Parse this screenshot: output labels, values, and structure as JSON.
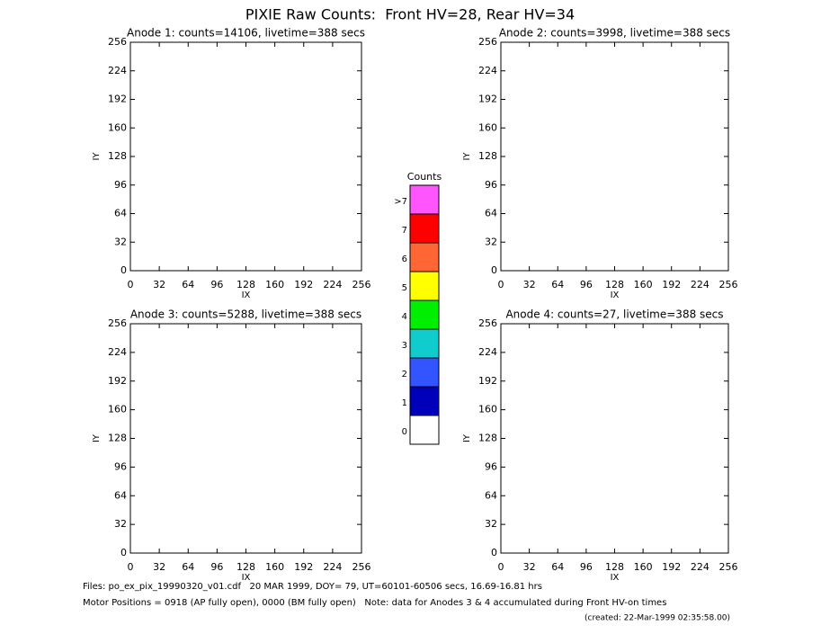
{
  "title": "PIXIE Raw Counts:  Front HV=28, Rear HV=34",
  "chart_data": [
    {
      "type": "scatter",
      "title": "Anode 1: counts=14106, livetime=388 secs",
      "x_label": "IX",
      "y_label": "IY",
      "xlim": [
        0,
        256
      ],
      "ylim": [
        0,
        256
      ],
      "xticks": [
        0,
        32,
        64,
        96,
        128,
        160,
        192,
        224,
        256
      ],
      "yticks": [
        0,
        32,
        64,
        96,
        128,
        160,
        192,
        224,
        256
      ]
    },
    {
      "type": "scatter",
      "title": "Anode 2: counts=3998, livetime=388 secs",
      "x_label": "IX",
      "y_label": "IY",
      "xlim": [
        0,
        256
      ],
      "ylim": [
        0,
        256
      ],
      "xticks": [
        0,
        32,
        64,
        96,
        128,
        160,
        192,
        224,
        256
      ],
      "yticks": [
        0,
        32,
        64,
        96,
        128,
        160,
        192,
        224,
        256
      ]
    },
    {
      "type": "scatter",
      "title": "Anode 3: counts=5288, livetime=388 secs",
      "x_label": "IX",
      "y_label": "IY",
      "xlim": [
        0,
        256
      ],
      "ylim": [
        0,
        256
      ],
      "xticks": [
        0,
        32,
        64,
        96,
        128,
        160,
        192,
        224,
        256
      ],
      "yticks": [
        0,
        32,
        64,
        96,
        128,
        160,
        192,
        224,
        256
      ]
    },
    {
      "type": "scatter",
      "title": "Anode 4: counts=27, livetime=388 secs",
      "x_label": "IX",
      "y_label": "IY",
      "xlim": [
        0,
        256
      ],
      "ylim": [
        0,
        256
      ],
      "xticks": [
        0,
        32,
        64,
        96,
        128,
        160,
        192,
        224,
        256
      ],
      "yticks": [
        0,
        32,
        64,
        96,
        128,
        160,
        192,
        224,
        256
      ]
    }
  ],
  "colorbar": {
    "title": "Counts",
    "labels": [
      ">7",
      "7",
      "6",
      "5",
      "4",
      "3",
      "2",
      "1",
      "0"
    ],
    "colors": [
      "#ff55ff",
      "#ff0000",
      "#ff6633",
      "#ffff00",
      "#00ee00",
      "#11cccc",
      "#3355ff",
      "#0000bb",
      "#ffffff"
    ]
  },
  "footer": {
    "files": "Files: po_ex_pix_19990320_v01.cdf   20 MAR 1999, DOY= 79, UT=60101-60506 secs, 16.69-16.81 hrs",
    "motor": "Motor Positions = 0918 (AP fully open), 0000 (BM fully open)   Note: data for Anodes 3 & 4 accumulated during Front HV-on times",
    "created": "(created: 22-Mar-1999 02:35:58.00)"
  }
}
